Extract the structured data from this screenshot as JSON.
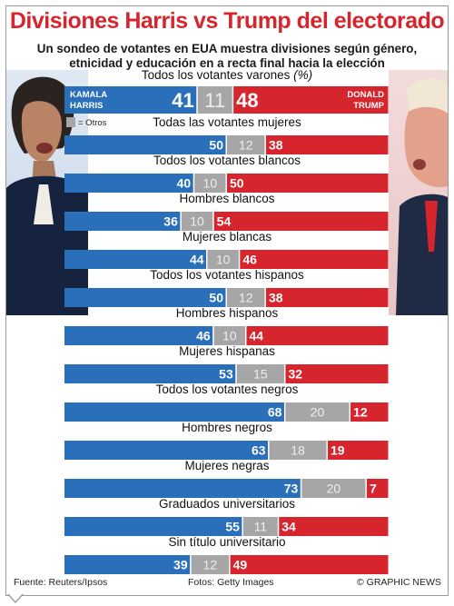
{
  "title": "Divisiones Harris vs Trump del electorado",
  "subtitle": "Un sondeo de votantes en EUA muestra divisiones según género, etnicidad y educación en a recta final hacia la elección",
  "candidates": {
    "harris_line1": "KAMALA",
    "harris_line2": "HARRIS",
    "trump_line1": "DONALD",
    "trump_line2": "TRUMP"
  },
  "legend_others": "= Otros",
  "footer": {
    "source": "Fuente: Reuters/Ipsos",
    "photos": "Fotos: Getty Images",
    "credit": "© GRAPHIC NEWS"
  },
  "colors": {
    "harris": "#2a6fba",
    "others": "#a6a6a6",
    "trump": "#d7252e",
    "title": "#d7252e"
  },
  "chart_data": {
    "type": "bar",
    "stacked": true,
    "orientation": "horizontal",
    "unit": "(%)",
    "categories": [
      "Todos los votantes varones",
      "Todas las votantes mujeres",
      "Todos los votantes blancos",
      "Hombres blancos",
      "Mujeres blancas",
      "Todos los votantes hispanos",
      "Hombres hispanos",
      "Mujeres hispanas",
      "Todos los votantes negros",
      "Hombres negros",
      "Mujeres negras",
      "Graduados universitarios",
      "Sin título universitario"
    ],
    "series": [
      {
        "name": "KAMALA HARRIS",
        "values": [
          41,
          50,
          40,
          36,
          44,
          50,
          46,
          53,
          68,
          63,
          73,
          55,
          39
        ]
      },
      {
        "name": "Otros",
        "values": [
          11,
          12,
          10,
          10,
          10,
          12,
          10,
          15,
          20,
          18,
          20,
          11,
          12
        ]
      },
      {
        "name": "DONALD TRUMP",
        "values": [
          48,
          38,
          50,
          54,
          46,
          38,
          44,
          32,
          12,
          19,
          7,
          34,
          49
        ]
      }
    ]
  }
}
